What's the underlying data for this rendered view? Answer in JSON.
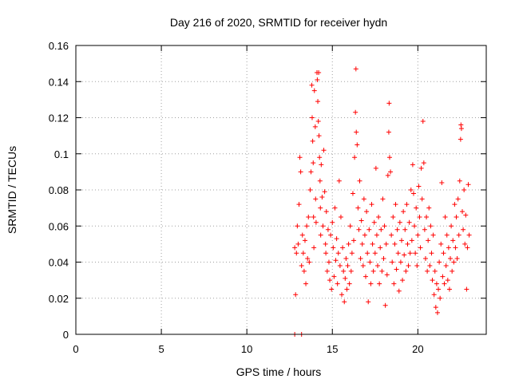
{
  "chart_data": {
    "type": "scatter",
    "title": "Day 216 of 2020, SRMTID for receiver hydn",
    "xlabel": "GPS time / hours",
    "ylabel": "SRMTID / TECUs",
    "xlim": [
      0,
      24
    ],
    "ylim": [
      0,
      0.16
    ],
    "xticks": [
      0,
      5,
      10,
      15,
      20
    ],
    "xtick_labels": [
      "0",
      "5",
      "10",
      "15",
      "20"
    ],
    "yticks": [
      0,
      0.02,
      0.04,
      0.06,
      0.08,
      0.1,
      0.12,
      0.14,
      0.16
    ],
    "ytick_labels": [
      "0",
      "0.02",
      "0.04",
      "0.06",
      "0.08",
      "0.1",
      "0.12",
      "0.14",
      "0.16"
    ],
    "grid": true,
    "marker": "+",
    "marker_color": "#ff0000",
    "series": [
      {
        "name": "hydn",
        "points": [
          [
            12.8,
            0
          ],
          [
            13.2,
            0
          ],
          [
            12.8,
            0.048
          ],
          [
            12.85,
            0.022
          ],
          [
            12.9,
            0.045
          ],
          [
            12.95,
            0.06
          ],
          [
            13.0,
            0.05
          ],
          [
            13.05,
            0.072
          ],
          [
            13.1,
            0.098
          ],
          [
            13.15,
            0.09
          ],
          [
            13.2,
            0.038
          ],
          [
            13.25,
            0.055
          ],
          [
            13.3,
            0.045
          ],
          [
            13.35,
            0.035
          ],
          [
            13.4,
            0.052
          ],
          [
            13.45,
            0.028
          ],
          [
            13.5,
            0.06
          ],
          [
            13.55,
            0.042
          ],
          [
            13.6,
            0.065
          ],
          [
            13.65,
            0.04
          ],
          [
            13.7,
            0.08
          ],
          [
            13.75,
            0.09
          ],
          [
            13.8,
            0.138
          ],
          [
            13.82,
            0.12
          ],
          [
            13.85,
            0.107
          ],
          [
            13.88,
            0.095
          ],
          [
            13.9,
            0.065
          ],
          [
            13.92,
            0.048
          ],
          [
            13.95,
            0.135
          ],
          [
            14.0,
            0.115
          ],
          [
            14.02,
            0.075
          ],
          [
            14.05,
            0.062
          ],
          [
            14.1,
            0.145
          ],
          [
            14.12,
            0.141
          ],
          [
            14.15,
            0.129
          ],
          [
            14.18,
            0.118
          ],
          [
            14.2,
            0.145
          ],
          [
            14.22,
            0.11
          ],
          [
            14.25,
            0.098
          ],
          [
            14.28,
            0.085
          ],
          [
            14.3,
            0.07
          ],
          [
            14.32,
            0.055
          ],
          [
            14.35,
            0.094
          ],
          [
            14.4,
            0.076
          ],
          [
            14.45,
            0.06
          ],
          [
            14.5,
            0.102
          ],
          [
            14.55,
            0.079
          ],
          [
            14.6,
            0.05
          ],
          [
            14.62,
            0.045
          ],
          [
            14.65,
            0.068
          ],
          [
            14.7,
            0.035
          ],
          [
            14.75,
            0.058
          ],
          [
            14.8,
            0.04
          ],
          [
            14.85,
            0.03
          ],
          [
            14.9,
            0.055
          ],
          [
            14.95,
            0.025
          ],
          [
            15.0,
            0.062
          ],
          [
            15.05,
            0.048
          ],
          [
            15.1,
            0.032
          ],
          [
            15.15,
            0.07
          ],
          [
            15.2,
            0.041
          ],
          [
            15.25,
            0.053
          ],
          [
            15.3,
            0.028
          ],
          [
            15.35,
            0.045
          ],
          [
            15.4,
            0.085
          ],
          [
            15.45,
            0.038
          ],
          [
            15.5,
            0.065
          ],
          [
            15.55,
            0.022
          ],
          [
            15.6,
            0.048
          ],
          [
            15.65,
            0.035
          ],
          [
            15.7,
            0.018
          ],
          [
            15.75,
            0.031
          ],
          [
            15.8,
            0.042
          ],
          [
            15.85,
            0.025
          ],
          [
            15.9,
            0.038
          ],
          [
            15.95,
            0.05
          ],
          [
            16.0,
            0.028
          ],
          [
            16.05,
            0.06
          ],
          [
            16.1,
            0.035
          ],
          [
            16.15,
            0.045
          ],
          [
            16.2,
            0.078
          ],
          [
            16.25,
            0.052
          ],
          [
            16.3,
            0.098
          ],
          [
            16.35,
            0.123
          ],
          [
            16.38,
            0.147
          ],
          [
            16.4,
            0.112
          ],
          [
            16.45,
            0.105
          ],
          [
            16.5,
            0.07
          ],
          [
            16.55,
            0.058
          ],
          [
            16.6,
            0.085
          ],
          [
            16.65,
            0.042
          ],
          [
            16.7,
            0.063
          ],
          [
            16.75,
            0.05
          ],
          [
            16.8,
            0.038
          ],
          [
            16.85,
            0.075
          ],
          [
            16.9,
            0.055
          ],
          [
            16.95,
            0.032
          ],
          [
            17.0,
            0.068
          ],
          [
            17.05,
            0.045
          ],
          [
            17.1,
            0.018
          ],
          [
            17.15,
            0.058
          ],
          [
            17.2,
            0.04
          ],
          [
            17.25,
            0.028
          ],
          [
            17.3,
            0.072
          ],
          [
            17.35,
            0.05
          ],
          [
            17.4,
            0.035
          ],
          [
            17.45,
            0.062
          ],
          [
            17.5,
            0.045
          ],
          [
            17.55,
            0.092
          ],
          [
            17.6,
            0.055
          ],
          [
            17.65,
            0.038
          ],
          [
            17.7,
            0.065
          ],
          [
            17.75,
            0.028
          ],
          [
            17.8,
            0.048
          ],
          [
            17.85,
            0.058
          ],
          [
            17.9,
            0.035
          ],
          [
            17.95,
            0.075
          ],
          [
            18.0,
            0.042
          ],
          [
            18.05,
            0.06
          ],
          [
            18.1,
            0.016
          ],
          [
            18.15,
            0.05
          ],
          [
            18.2,
            0.033
          ],
          [
            18.25,
            0.088
          ],
          [
            18.3,
            0.112
          ],
          [
            18.32,
            0.128
          ],
          [
            18.35,
            0.098
          ],
          [
            18.4,
            0.09
          ],
          [
            18.45,
            0.055
          ],
          [
            18.5,
            0.04
          ],
          [
            18.55,
            0.065
          ],
          [
            18.6,
            0.028
          ],
          [
            18.65,
            0.05
          ],
          [
            18.7,
            0.072
          ],
          [
            18.75,
            0.036
          ],
          [
            18.8,
            0.058
          ],
          [
            18.85,
            0.045
          ],
          [
            18.9,
            0.024
          ],
          [
            18.95,
            0.062
          ],
          [
            19.0,
            0.04
          ],
          [
            19.05,
            0.052
          ],
          [
            19.1,
            0.03
          ],
          [
            19.15,
            0.068
          ],
          [
            19.2,
            0.044
          ],
          [
            19.25,
            0.058
          ],
          [
            19.3,
            0.035
          ],
          [
            19.35,
            0.072
          ],
          [
            19.4,
            0.05
          ],
          [
            19.45,
            0.038
          ],
          [
            19.5,
            0.062
          ],
          [
            19.55,
            0.045
          ],
          [
            19.6,
            0.08
          ],
          [
            19.65,
            0.052
          ],
          [
            19.7,
            0.094
          ],
          [
            19.75,
            0.078
          ],
          [
            19.8,
            0.06
          ],
          [
            19.85,
            0.045
          ],
          [
            19.9,
            0.07
          ],
          [
            19.95,
            0.038
          ],
          [
            20.0,
            0.055
          ],
          [
            20.05,
            0.082
          ],
          [
            20.1,
            0.065
          ],
          [
            20.15,
            0.048
          ],
          [
            20.2,
            0.092
          ],
          [
            20.25,
            0.075
          ],
          [
            20.3,
            0.118
          ],
          [
            20.35,
            0.095
          ],
          [
            20.4,
            0.058
          ],
          [
            20.45,
            0.042
          ],
          [
            20.5,
            0.065
          ],
          [
            20.55,
            0.035
          ],
          [
            20.6,
            0.052
          ],
          [
            20.65,
            0.07
          ],
          [
            20.7,
            0.038
          ],
          [
            20.75,
            0.06
          ],
          [
            20.8,
            0.045
          ],
          [
            20.85,
            0.03
          ],
          [
            20.9,
            0.055
          ],
          [
            20.95,
            0.022
          ],
          [
            21.0,
            0.035
          ],
          [
            21.05,
            0.015
          ],
          [
            21.1,
            0.028
          ],
          [
            21.15,
            0.012
          ],
          [
            21.2,
            0.025
          ],
          [
            21.25,
            0.04
          ],
          [
            21.3,
            0.02
          ],
          [
            21.35,
            0.05
          ],
          [
            21.4,
            0.084
          ],
          [
            21.45,
            0.032
          ],
          [
            21.5,
            0.045
          ],
          [
            21.55,
            0.028
          ],
          [
            21.6,
            0.065
          ],
          [
            21.65,
            0.038
          ],
          [
            21.7,
            0.055
          ],
          [
            21.75,
            0.03
          ],
          [
            21.8,
            0.048
          ],
          [
            21.85,
            0.025
          ],
          [
            21.9,
            0.042
          ],
          [
            21.95,
            0.06
          ],
          [
            22.0,
            0.035
          ],
          [
            22.05,
            0.052
          ],
          [
            22.1,
            0.04
          ],
          [
            22.15,
            0.072
          ],
          [
            22.2,
            0.048
          ],
          [
            22.25,
            0.065
          ],
          [
            22.3,
            0.042
          ],
          [
            22.35,
            0.075
          ],
          [
            22.4,
            0.055
          ],
          [
            22.45,
            0.085
          ],
          [
            22.5,
            0.108
          ],
          [
            22.52,
            0.116
          ],
          [
            22.55,
            0.114
          ],
          [
            22.6,
            0.068
          ],
          [
            22.65,
            0.058
          ],
          [
            22.7,
            0.08
          ],
          [
            22.75,
            0.05
          ],
          [
            22.8,
            0.066
          ],
          [
            22.85,
            0.025
          ],
          [
            22.9,
            0.048
          ],
          [
            22.95,
            0.083
          ],
          [
            23.0,
            0.055
          ]
        ]
      }
    ]
  }
}
